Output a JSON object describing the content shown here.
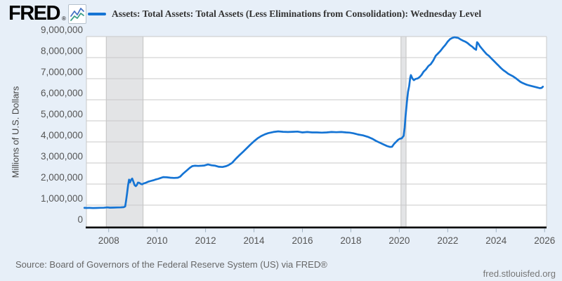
{
  "header": {
    "logo_text": "FRED",
    "logo_registered": "®",
    "legend_label": "Assets: Total Assets: Total Assets (Less Eliminations from Consolidation): Wednesday Level"
  },
  "footer": {
    "source": "Source: Board of Governors of the Federal Reserve System (US) via FRED®",
    "site": "fred.stlouisfed.org"
  },
  "colors": {
    "background": "#e7eff8",
    "plot_background": "#ffffff",
    "line": "#1574d4",
    "grid": "#c9c9c9",
    "frame": "#c9c9c9",
    "recession_band": "#e3e4e6",
    "recession_band_edge": "#c2c2c2",
    "axis": "#000000",
    "tick_text": "#555555",
    "x_tick_mark": "#9fb1c1",
    "logo_icon_blue": "#4472c4",
    "logo_icon_green": "#3fa08a"
  },
  "chart_data": {
    "type": "line",
    "title": "Assets: Total Assets: Total Assets (Less Eliminations from Consolidation): Wednesday Level",
    "xlabel": "",
    "ylabel": "Millions of U.S. Dollars",
    "x_range": [
      2007.08,
      2026.08
    ],
    "y_range": [
      0,
      9000000
    ],
    "grid": true,
    "legend_position": "top",
    "y_ticks": [
      0,
      1000000,
      2000000,
      3000000,
      4000000,
      5000000,
      6000000,
      7000000,
      8000000,
      9000000
    ],
    "y_tick_labels": [
      "0",
      "1,000,000",
      "2,000,000",
      "3,000,000",
      "4,000,000",
      "5,000,000",
      "6,000,000",
      "7,000,000",
      "8,000,000",
      "9,000,000"
    ],
    "x_ticks": [
      2008,
      2010,
      2012,
      2014,
      2016,
      2018,
      2020,
      2022,
      2024,
      2026
    ],
    "x_tick_labels": [
      "2008",
      "2010",
      "2012",
      "2014",
      "2016",
      "2018",
      "2020",
      "2022",
      "2024",
      "2026"
    ],
    "recession_bands": [
      [
        2007.9,
        2009.42
      ],
      [
        2020.07,
        2020.28
      ]
    ],
    "series": [
      {
        "name": "Assets: Total Assets: Total Assets (Less Eliminations from Consolidation): Wednesday Level",
        "color": "#1574d4",
        "points": [
          [
            2007.0,
            869000
          ],
          [
            2007.1,
            866000
          ],
          [
            2007.2,
            870000
          ],
          [
            2007.35,
            864000
          ],
          [
            2007.5,
            868000
          ],
          [
            2007.65,
            872000
          ],
          [
            2007.8,
            876000
          ],
          [
            2007.95,
            893000
          ],
          [
            2008.05,
            880000
          ],
          [
            2008.2,
            884000
          ],
          [
            2008.35,
            889000
          ],
          [
            2008.5,
            894000
          ],
          [
            2008.62,
            905000
          ],
          [
            2008.68,
            940000
          ],
          [
            2008.72,
            1220000
          ],
          [
            2008.76,
            1560000
          ],
          [
            2008.8,
            1940000
          ],
          [
            2008.84,
            2210000
          ],
          [
            2008.88,
            2080000
          ],
          [
            2008.93,
            2210000
          ],
          [
            2008.97,
            2260000
          ],
          [
            2009.02,
            2110000
          ],
          [
            2009.07,
            1950000
          ],
          [
            2009.12,
            1900000
          ],
          [
            2009.16,
            1950000
          ],
          [
            2009.21,
            2070000
          ],
          [
            2009.26,
            2060000
          ],
          [
            2009.32,
            2010000
          ],
          [
            2009.38,
            1990000
          ],
          [
            2009.45,
            2030000
          ],
          [
            2009.55,
            2070000
          ],
          [
            2009.65,
            2120000
          ],
          [
            2009.75,
            2150000
          ],
          [
            2009.85,
            2180000
          ],
          [
            2009.95,
            2220000
          ],
          [
            2010.05,
            2250000
          ],
          [
            2010.15,
            2290000
          ],
          [
            2010.25,
            2330000
          ],
          [
            2010.4,
            2320000
          ],
          [
            2010.55,
            2300000
          ],
          [
            2010.7,
            2290000
          ],
          [
            2010.85,
            2300000
          ],
          [
            2010.95,
            2350000
          ],
          [
            2011.05,
            2470000
          ],
          [
            2011.15,
            2570000
          ],
          [
            2011.25,
            2670000
          ],
          [
            2011.35,
            2770000
          ],
          [
            2011.45,
            2850000
          ],
          [
            2011.55,
            2870000
          ],
          [
            2011.7,
            2860000
          ],
          [
            2011.85,
            2870000
          ],
          [
            2011.95,
            2880000
          ],
          [
            2012.1,
            2930000
          ],
          [
            2012.25,
            2890000
          ],
          [
            2012.4,
            2870000
          ],
          [
            2012.55,
            2820000
          ],
          [
            2012.7,
            2810000
          ],
          [
            2012.85,
            2850000
          ],
          [
            2012.95,
            2900000
          ],
          [
            2013.1,
            3010000
          ],
          [
            2013.25,
            3200000
          ],
          [
            2013.4,
            3370000
          ],
          [
            2013.55,
            3530000
          ],
          [
            2013.7,
            3700000
          ],
          [
            2013.85,
            3870000
          ],
          [
            2014.0,
            4030000
          ],
          [
            2014.15,
            4170000
          ],
          [
            2014.3,
            4280000
          ],
          [
            2014.45,
            4360000
          ],
          [
            2014.6,
            4420000
          ],
          [
            2014.8,
            4470000
          ],
          [
            2015.0,
            4500000
          ],
          [
            2015.2,
            4480000
          ],
          [
            2015.4,
            4470000
          ],
          [
            2015.6,
            4480000
          ],
          [
            2015.8,
            4490000
          ],
          [
            2016.0,
            4450000
          ],
          [
            2016.2,
            4470000
          ],
          [
            2016.4,
            4450000
          ],
          [
            2016.6,
            4450000
          ],
          [
            2016.8,
            4440000
          ],
          [
            2017.0,
            4450000
          ],
          [
            2017.2,
            4470000
          ],
          [
            2017.4,
            4460000
          ],
          [
            2017.6,
            4470000
          ],
          [
            2017.8,
            4450000
          ],
          [
            2017.95,
            4440000
          ],
          [
            2018.1,
            4410000
          ],
          [
            2018.3,
            4350000
          ],
          [
            2018.5,
            4310000
          ],
          [
            2018.7,
            4240000
          ],
          [
            2018.9,
            4140000
          ],
          [
            2019.05,
            4040000
          ],
          [
            2019.2,
            3960000
          ],
          [
            2019.35,
            3880000
          ],
          [
            2019.5,
            3800000
          ],
          [
            2019.62,
            3760000
          ],
          [
            2019.7,
            3770000
          ],
          [
            2019.78,
            3900000
          ],
          [
            2019.85,
            3980000
          ],
          [
            2019.95,
            4100000
          ],
          [
            2020.02,
            4150000
          ],
          [
            2020.1,
            4170000
          ],
          [
            2020.18,
            4290000
          ],
          [
            2020.22,
            4670000
          ],
          [
            2020.26,
            5250000
          ],
          [
            2020.31,
            5860000
          ],
          [
            2020.36,
            6370000
          ],
          [
            2020.41,
            6660000
          ],
          [
            2020.45,
            7040000
          ],
          [
            2020.48,
            7170000
          ],
          [
            2020.54,
            7010000
          ],
          [
            2020.6,
            6930000
          ],
          [
            2020.68,
            6990000
          ],
          [
            2020.76,
            7010000
          ],
          [
            2020.84,
            7080000
          ],
          [
            2020.92,
            7180000
          ],
          [
            2021.0,
            7330000
          ],
          [
            2021.1,
            7440000
          ],
          [
            2021.2,
            7600000
          ],
          [
            2021.3,
            7690000
          ],
          [
            2021.4,
            7860000
          ],
          [
            2021.5,
            8080000
          ],
          [
            2021.6,
            8200000
          ],
          [
            2021.7,
            8320000
          ],
          [
            2021.8,
            8470000
          ],
          [
            2021.9,
            8600000
          ],
          [
            2022.0,
            8760000
          ],
          [
            2022.1,
            8880000
          ],
          [
            2022.2,
            8940000
          ],
          [
            2022.28,
            8965000
          ],
          [
            2022.36,
            8950000
          ],
          [
            2022.44,
            8930000
          ],
          [
            2022.52,
            8870000
          ],
          [
            2022.62,
            8810000
          ],
          [
            2022.72,
            8760000
          ],
          [
            2022.82,
            8690000
          ],
          [
            2022.92,
            8590000
          ],
          [
            2023.02,
            8510000
          ],
          [
            2023.1,
            8420000
          ],
          [
            2023.17,
            8370000
          ],
          [
            2023.21,
            8730000
          ],
          [
            2023.26,
            8670000
          ],
          [
            2023.32,
            8550000
          ],
          [
            2023.4,
            8440000
          ],
          [
            2023.5,
            8300000
          ],
          [
            2023.6,
            8170000
          ],
          [
            2023.7,
            8080000
          ],
          [
            2023.8,
            7960000
          ],
          [
            2023.9,
            7850000
          ],
          [
            2024.0,
            7730000
          ],
          [
            2024.1,
            7620000
          ],
          [
            2024.2,
            7500000
          ],
          [
            2024.3,
            7400000
          ],
          [
            2024.4,
            7320000
          ],
          [
            2024.5,
            7230000
          ],
          [
            2024.6,
            7170000
          ],
          [
            2024.7,
            7110000
          ],
          [
            2024.8,
            7030000
          ],
          [
            2024.9,
            6940000
          ],
          [
            2025.0,
            6850000
          ],
          [
            2025.1,
            6790000
          ],
          [
            2025.2,
            6740000
          ],
          [
            2025.3,
            6700000
          ],
          [
            2025.4,
            6670000
          ],
          [
            2025.5,
            6640000
          ],
          [
            2025.6,
            6610000
          ],
          [
            2025.7,
            6580000
          ],
          [
            2025.8,
            6550000
          ],
          [
            2025.87,
            6560000
          ],
          [
            2025.93,
            6620000
          ]
        ]
      }
    ]
  }
}
